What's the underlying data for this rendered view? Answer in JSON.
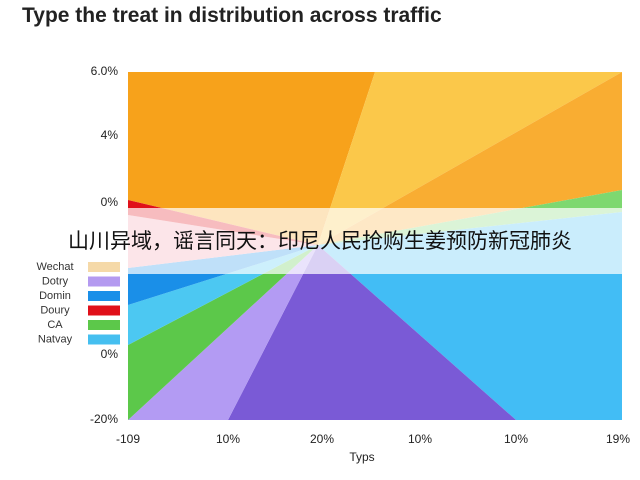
{
  "title": "Type the treat in distribution across traffic",
  "y_axis": {
    "tick_labels": [
      "6.0%",
      "4%",
      "0%",
      "0%",
      "-20%"
    ]
  },
  "x_axis": {
    "title": "Typs",
    "tick_labels": [
      "-109",
      "10%",
      "20%",
      "10%",
      "10%",
      "19%"
    ]
  },
  "legend": [
    {
      "label": "Wechat",
      "color": "#f5d9a8"
    },
    {
      "label": "Dotry",
      "color": "#b49af0"
    },
    {
      "label": "Domin",
      "color": "#1a8fe8"
    },
    {
      "label": "Doury",
      "color": "#e0101a"
    },
    {
      "label": "CA",
      "color": "#5cc84a"
    },
    {
      "label": "Natvay",
      "color": "#45bff0"
    }
  ],
  "banner": {
    "text": "山川异域，谣言同天：印尼人民抢购生姜预防新冠肺炎"
  }
}
